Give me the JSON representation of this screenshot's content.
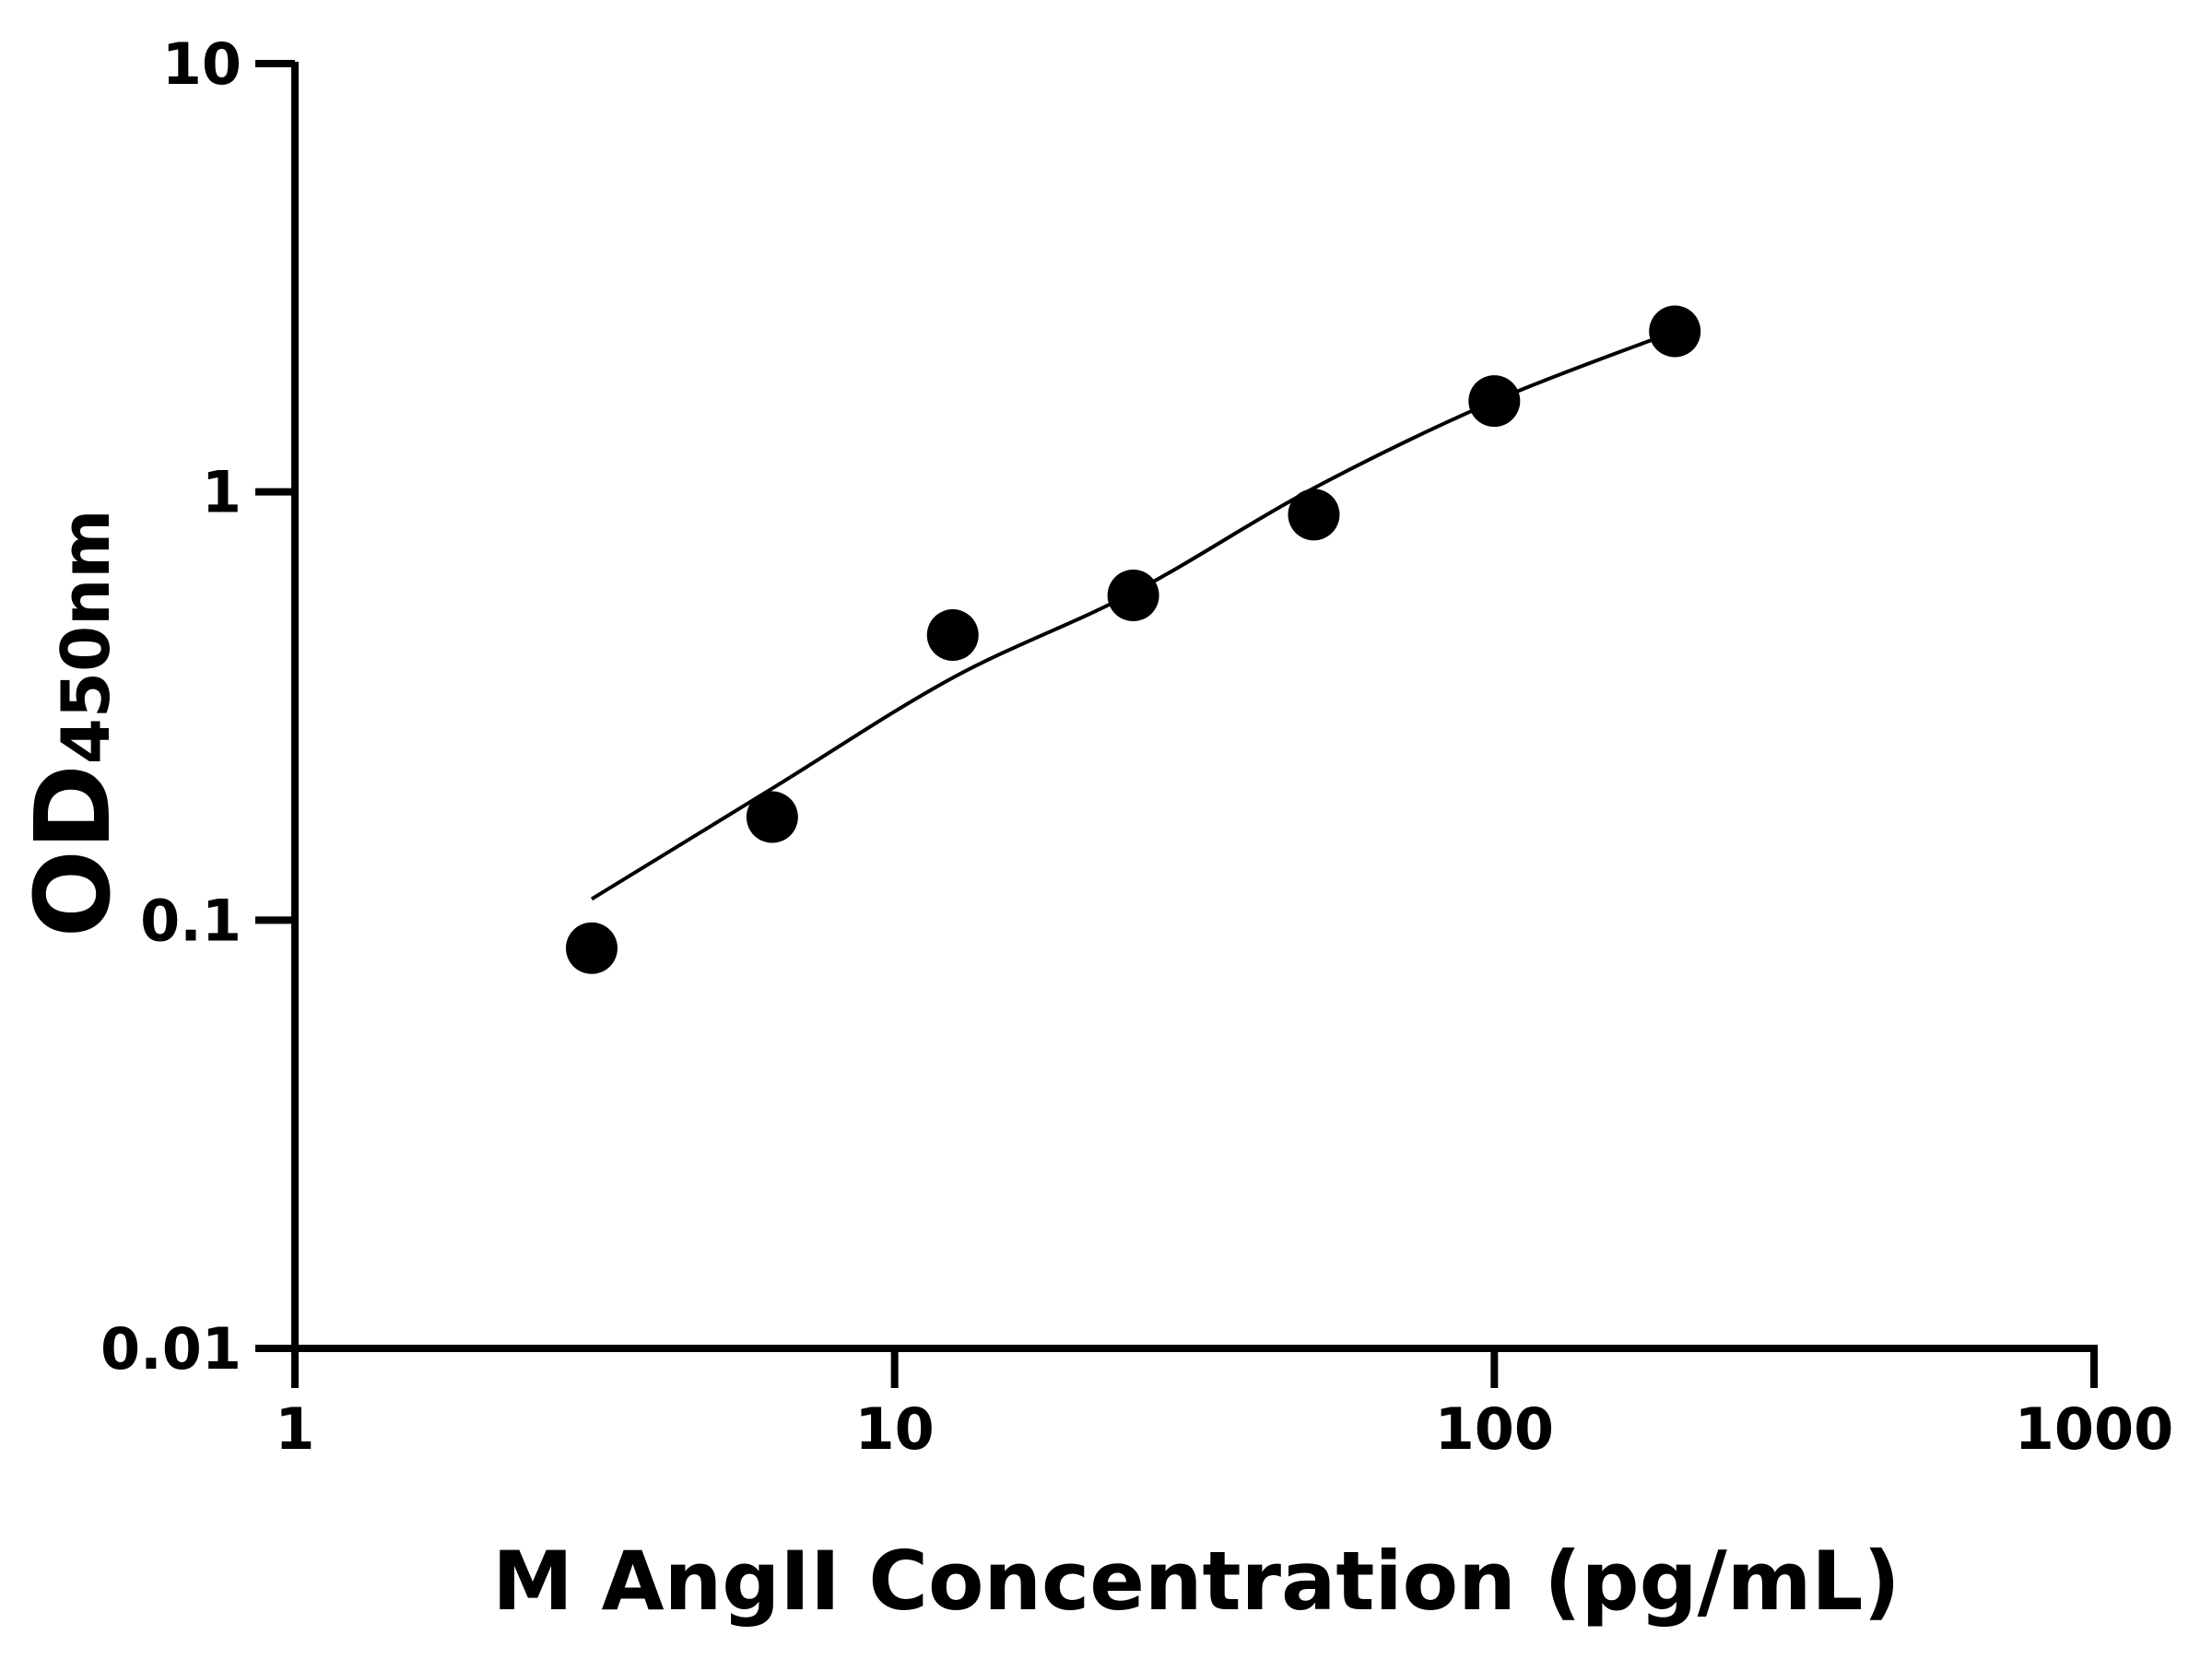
{
  "chart_data": {
    "type": "scatter",
    "xlabel": "M AngII Concentration (pg/mL)",
    "ylabel": "OD",
    "ylabel_subscript": "450nm",
    "x_scale": "log",
    "y_scale": "log",
    "xlim": [
      1,
      1000
    ],
    "ylim": [
      0.01,
      10
    ],
    "x_ticks": [
      "1",
      "10",
      "100",
      "1000"
    ],
    "y_ticks": [
      "0.01",
      "0.1",
      "1",
      "10"
    ],
    "grid": false,
    "legend": "none",
    "marker_color": "#000000",
    "points": {
      "x": [
        3.125,
        6.25,
        12.5,
        25,
        50,
        100,
        200
      ],
      "y": [
        0.086,
        0.174,
        0.463,
        0.573,
        0.885,
        1.63,
        2.37
      ]
    },
    "fit_curve": {
      "x": [
        3.125,
        6.25,
        12.5,
        25,
        50,
        100,
        200
      ],
      "y": [
        0.112,
        0.203,
        0.368,
        0.582,
        1.02,
        1.63,
        2.37
      ]
    }
  }
}
